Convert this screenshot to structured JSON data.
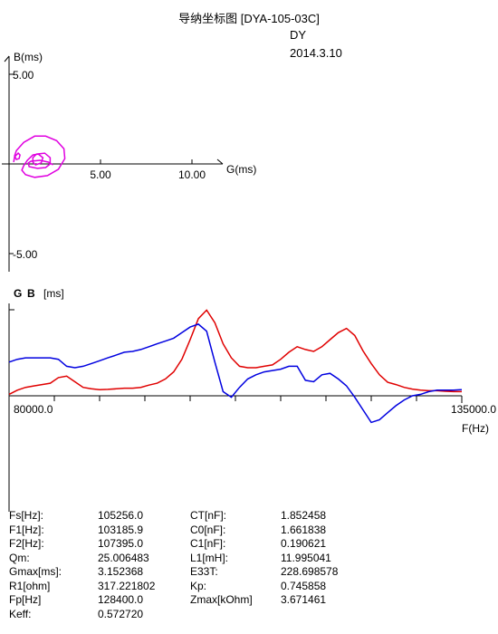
{
  "header": {
    "title": "导纳坐标图  [DYA-105-03C]",
    "line2": "DY",
    "line3": "2014.3.10"
  },
  "chart_data": [
    {
      "type": "line",
      "name": "admittance-circle",
      "xlabel": "G(ms)",
      "ylabel": "B(ms)",
      "x_ticks": [
        {
          "value": 5.0,
          "label": "5.00"
        },
        {
          "value": 10.0,
          "label": "10.00"
        }
      ],
      "y_ticks": [
        {
          "value": 5.0,
          "label": "5.00"
        },
        {
          "value": -5.0,
          "label": "-5.00"
        }
      ],
      "xlim": [
        0,
        12
      ],
      "ylim": [
        -6,
        5.5
      ],
      "color": "#e000e0",
      "points": [
        [
          0.25,
          0.1
        ],
        [
          0.3,
          0.4
        ],
        [
          0.5,
          0.6
        ],
        [
          0.6,
          0.5
        ],
        [
          0.55,
          0.3
        ],
        [
          0.4,
          0.25
        ],
        [
          0.3,
          0.45
        ],
        [
          0.4,
          0.75
        ],
        [
          0.8,
          1.2
        ],
        [
          1.4,
          1.55
        ],
        [
          2.0,
          1.55
        ],
        [
          2.6,
          1.3
        ],
        [
          3.0,
          0.85
        ],
        [
          3.05,
          0.3
        ],
        [
          2.7,
          -0.3
        ],
        [
          2.1,
          -0.65
        ],
        [
          1.4,
          -0.75
        ],
        [
          0.9,
          -0.6
        ],
        [
          0.7,
          -0.35
        ],
        [
          0.8,
          -0.1
        ],
        [
          1.0,
          0.2
        ],
        [
          1.3,
          0.5
        ],
        [
          1.6,
          0.55
        ],
        [
          1.85,
          0.35
        ],
        [
          1.75,
          0.05
        ],
        [
          1.45,
          -0.05
        ],
        [
          1.3,
          0.1
        ],
        [
          1.3,
          0.35
        ],
        [
          1.5,
          0.55
        ],
        [
          1.95,
          0.6
        ],
        [
          2.25,
          0.35
        ],
        [
          2.25,
          0.0
        ],
        [
          2.0,
          -0.2
        ],
        [
          1.55,
          -0.25
        ],
        [
          1.1,
          -0.15
        ],
        [
          1.05,
          0.05
        ],
        [
          1.2,
          0.15
        ],
        [
          1.7,
          0.2
        ],
        [
          2.15,
          0.1
        ],
        [
          2.4,
          -0.05
        ]
      ]
    },
    {
      "type": "line",
      "name": "frequency-response",
      "legend": [
        "G",
        "B"
      ],
      "ylabel_unit": "[ms]",
      "xlabel": "F(Hz)",
      "x_start_label": "80000.0",
      "x_end_label": "135000.0",
      "xlim": [
        80000,
        135000
      ],
      "ylim": [
        -1.2,
        3.2
      ],
      "x": [
        80000,
        81000,
        82000,
        83000,
        84000,
        85000,
        86000,
        87000,
        88000,
        89000,
        90000,
        91000,
        92000,
        93000,
        94000,
        95000,
        96000,
        97000,
        98000,
        99000,
        100000,
        101000,
        102000,
        103000,
        104000,
        105000,
        106000,
        107000,
        108000,
        109000,
        110000,
        111000,
        112000,
        113000,
        114000,
        115000,
        116000,
        117000,
        118000,
        119000,
        120000,
        121000,
        122000,
        123000,
        124000,
        125000,
        126000,
        127000,
        128000,
        129000,
        130000,
        131000,
        132000,
        133000,
        134000,
        135000
      ],
      "series": [
        {
          "name": "G",
          "color": "#e00000",
          "values": [
            0.05,
            0.2,
            0.3,
            0.35,
            0.4,
            0.45,
            0.65,
            0.7,
            0.5,
            0.3,
            0.25,
            0.22,
            0.23,
            0.25,
            0.27,
            0.27,
            0.3,
            0.38,
            0.45,
            0.6,
            0.85,
            1.3,
            2.0,
            2.75,
            3.05,
            2.6,
            1.85,
            1.35,
            1.05,
            1.0,
            1.0,
            1.05,
            1.1,
            1.3,
            1.55,
            1.75,
            1.65,
            1.58,
            1.75,
            2.0,
            2.25,
            2.4,
            2.15,
            1.6,
            1.15,
            0.75,
            0.48,
            0.4,
            0.3,
            0.24,
            0.2,
            0.18,
            0.18,
            0.16,
            0.15,
            0.15
          ]
        },
        {
          "name": "B",
          "color": "#0000e0",
          "values": [
            1.2,
            1.3,
            1.35,
            1.35,
            1.35,
            1.35,
            1.3,
            1.05,
            1.0,
            1.05,
            1.15,
            1.25,
            1.35,
            1.45,
            1.55,
            1.58,
            1.65,
            1.75,
            1.85,
            1.95,
            2.05,
            2.25,
            2.45,
            2.55,
            2.3,
            1.2,
            0.15,
            -0.05,
            0.3,
            0.6,
            0.75,
            0.85,
            0.9,
            0.95,
            1.05,
            1.05,
            0.55,
            0.5,
            0.75,
            0.8,
            0.6,
            0.35,
            -0.05,
            -0.5,
            -0.95,
            -0.85,
            -0.6,
            -0.35,
            -0.15,
            0.0,
            0.05,
            0.15,
            0.2,
            0.2,
            0.2,
            0.22
          ]
        }
      ]
    }
  ],
  "parameters": {
    "left": [
      {
        "label": "Fs[Hz]:",
        "value": "105256.0"
      },
      {
        "label": "F1[Hz]:",
        "value": "103185.9"
      },
      {
        "label": "F2[Hz]:",
        "value": "107395.0"
      },
      {
        "label": "Qm:",
        "value": "25.006483"
      },
      {
        "label": "Gmax[ms]:",
        "value": "3.152368"
      },
      {
        "label": "R1[ohm]",
        "value": "317.221802"
      },
      {
        "label": "Fp[Hz]",
        "value": "128400.0"
      },
      {
        "label": "Keff:",
        "value": "0.572720"
      }
    ],
    "right": [
      {
        "label": "CT[nF]:",
        "value": "1.852458"
      },
      {
        "label": "C0[nF]:",
        "value": "1.661838"
      },
      {
        "label": "C1[nF]:",
        "value": "0.190621"
      },
      {
        "label": "L1[mH]:",
        "value": "11.995041"
      },
      {
        "label": "E33T:",
        "value": "228.698578"
      },
      {
        "label": "Kp:",
        "value": "0.745858"
      },
      {
        "label": "Zmax[kOhm]",
        "value": "3.671461"
      }
    ]
  }
}
